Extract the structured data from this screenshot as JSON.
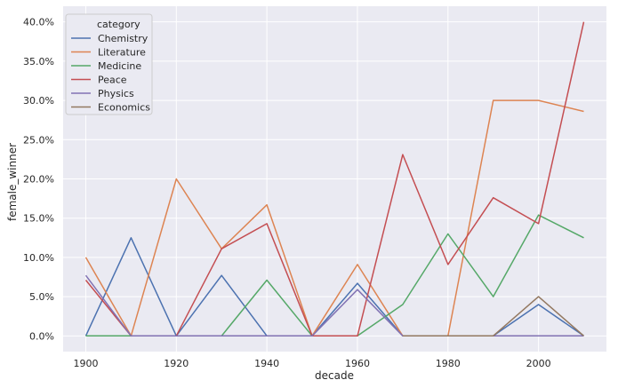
{
  "chart_data": {
    "type": "line",
    "xlabel": "decade",
    "ylabel": "female_winner",
    "x": [
      1900,
      1910,
      1920,
      1930,
      1940,
      1950,
      1960,
      1970,
      1980,
      1990,
      2000,
      2010
    ],
    "xlim": [
      1895,
      2015
    ],
    "ylim": [
      -2.0,
      42.0
    ],
    "x_ticks": [
      "1900",
      "1920",
      "1940",
      "1960",
      "1980",
      "2000"
    ],
    "y_ticks": [
      "0.0%",
      "5.0%",
      "10.0%",
      "15.0%",
      "20.0%",
      "25.0%",
      "30.0%",
      "35.0%",
      "40.0%"
    ],
    "grid": true,
    "legend_title": "category",
    "legend_position": "top-left",
    "series": [
      {
        "name": "Chemistry",
        "color": "#4c72b0",
        "values": [
          0.0,
          12.5,
          0.0,
          7.7,
          0.0,
          0.0,
          6.7,
          0.0,
          0.0,
          0.0,
          4.0,
          0.0
        ]
      },
      {
        "name": "Literature",
        "color": "#dd8452",
        "values": [
          10.0,
          0.0,
          20.0,
          11.1,
          16.7,
          0.0,
          9.1,
          0.0,
          0.0,
          30.0,
          30.0,
          28.6
        ]
      },
      {
        "name": "Medicine",
        "color": "#55a868",
        "values": [
          0.0,
          0.0,
          0.0,
          0.0,
          7.1,
          0.0,
          0.0,
          4.0,
          13.0,
          5.0,
          15.4,
          12.5
        ]
      },
      {
        "name": "Peace",
        "color": "#c44e52",
        "values": [
          7.1,
          0.0,
          0.0,
          11.1,
          14.3,
          0.0,
          0.0,
          23.1,
          9.1,
          17.6,
          14.3,
          40.0
        ]
      },
      {
        "name": "Physics",
        "color": "#8172b3",
        "values": [
          7.7,
          0.0,
          0.0,
          0.0,
          0.0,
          0.0,
          5.9,
          0.0,
          0.0,
          0.0,
          0.0,
          0.0
        ]
      },
      {
        "name": "Economics",
        "color": "#937860",
        "values": [
          null,
          null,
          null,
          null,
          null,
          null,
          null,
          0.0,
          0.0,
          0.0,
          5.0,
          0.0
        ]
      }
    ]
  }
}
